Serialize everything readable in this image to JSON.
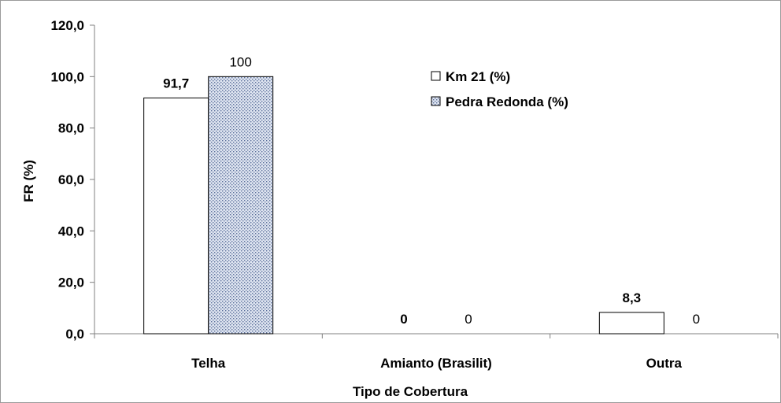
{
  "chart_data": {
    "type": "bar",
    "categories": [
      "Telha",
      "Amianto (Brasilit)",
      "Outra"
    ],
    "series": [
      {
        "name": "Km 21 (%)",
        "values": [
          91.7,
          0,
          8.3
        ],
        "value_labels": [
          "91,7",
          "0",
          "8,3"
        ],
        "fill": "#ffffff",
        "pattern": "none",
        "label_weight": "bold"
      },
      {
        "name": "Pedra Redonda (%)",
        "values": [
          100,
          0,
          0
        ],
        "value_labels": [
          "100",
          "0",
          "0"
        ],
        "fill": "#c9d3e6",
        "pattern": "dotted",
        "label_weight": "normal"
      }
    ],
    "xlabel": "Tipo de Cobertura",
    "ylabel": "FR (%)",
    "ylim": [
      0,
      120
    ],
    "yticks": [
      0,
      20,
      40,
      60,
      80,
      100,
      120
    ],
    "ytick_labels": [
      "0,0",
      "20,0",
      "40,0",
      "60,0",
      "80,0",
      "100,0",
      "120,0"
    ],
    "grid": false,
    "legend_position": "top-right-inside"
  }
}
